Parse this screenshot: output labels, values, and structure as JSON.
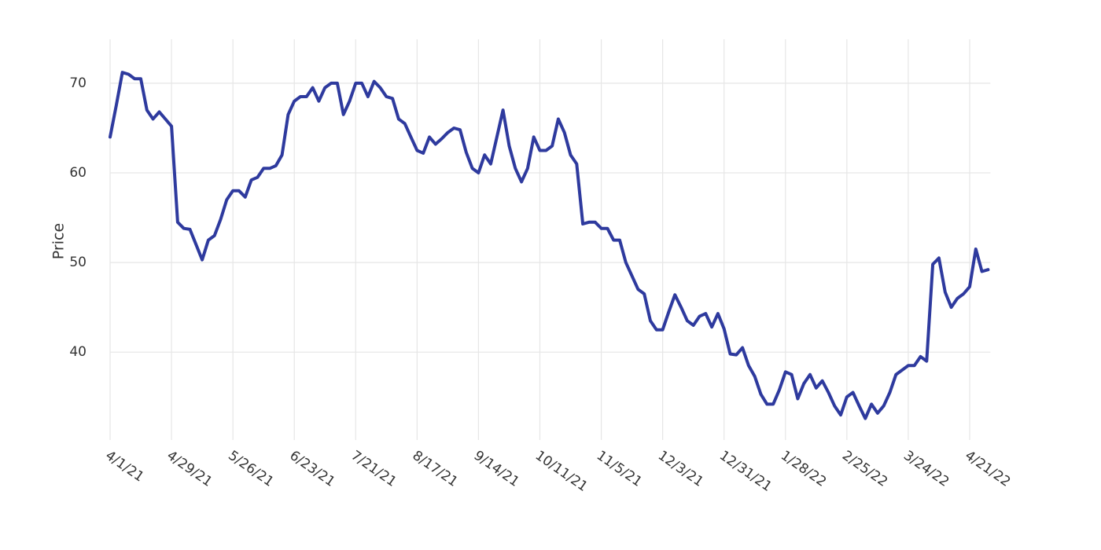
{
  "chart_data": {
    "type": "line",
    "y_label": "Price",
    "categories": [
      "4/1/21",
      null,
      null,
      null,
      null,
      null,
      null,
      null,
      null,
      null,
      "4/29/21",
      null,
      null,
      null,
      null,
      null,
      null,
      null,
      null,
      null,
      "5/26/21",
      null,
      null,
      null,
      null,
      null,
      null,
      null,
      null,
      null,
      "6/23/21",
      null,
      null,
      null,
      null,
      null,
      null,
      null,
      null,
      null,
      "7/21/21",
      null,
      null,
      null,
      null,
      null,
      null,
      null,
      null,
      null,
      "8/17/21",
      null,
      null,
      null,
      null,
      null,
      null,
      null,
      null,
      null,
      "9/14/21",
      null,
      null,
      null,
      null,
      null,
      null,
      null,
      null,
      null,
      "10/11/21",
      null,
      null,
      null,
      null,
      null,
      null,
      null,
      null,
      null,
      "11/5/21",
      null,
      null,
      null,
      null,
      null,
      null,
      null,
      null,
      null,
      "12/3/21",
      null,
      null,
      null,
      null,
      null,
      null,
      null,
      null,
      null,
      "12/31/21",
      null,
      null,
      null,
      null,
      null,
      null,
      null,
      null,
      null,
      "1/28/22",
      null,
      null,
      null,
      null,
      null,
      null,
      null,
      null,
      null,
      "2/25/22",
      null,
      null,
      null,
      null,
      null,
      null,
      null,
      null,
      null,
      "3/24/22",
      null,
      null,
      null,
      null,
      null,
      null,
      null,
      null,
      null,
      "4/21/22",
      null,
      null,
      null
    ],
    "values": [
      64,
      67.5,
      71.2,
      71,
      70.5,
      70.5,
      67,
      66,
      66.8,
      66,
      65.2,
      54.5,
      53.8,
      53.7,
      52,
      50.3,
      52.5,
      53,
      54.8,
      57,
      58,
      58,
      57.3,
      59.2,
      59.5,
      60.5,
      60.5,
      60.8,
      62,
      66.5,
      68,
      68.5,
      68.5,
      69.5,
      68,
      69.5,
      70,
      70,
      66.5,
      68,
      70,
      70,
      68.5,
      70.2,
      69.5,
      68.5,
      68.3,
      66,
      65.5,
      64,
      62.5,
      62.2,
      64,
      63.2,
      63.8,
      64.5,
      65,
      64.8,
      62.3,
      60.5,
      60,
      62,
      61,
      64,
      67,
      63,
      60.5,
      59,
      60.5,
      64,
      62.5,
      62.5,
      63,
      66,
      64.5,
      62,
      61,
      54.3,
      54.5,
      54.5,
      53.8,
      53.8,
      52.5,
      52.5,
      50,
      48.5,
      47,
      46.5,
      43.5,
      42.5,
      42.5,
      44.5,
      46.4,
      45,
      43.5,
      43,
      44,
      44.3,
      42.8,
      44.3,
      42.6,
      39.8,
      39.7,
      40.5,
      38.5,
      37.3,
      35.3,
      34.2,
      34.2,
      35.8,
      37.8,
      37.5,
      34.8,
      36.5,
      37.5,
      36,
      36.8,
      35.5,
      34,
      33,
      35,
      35.5,
      34,
      32.6,
      34.2,
      33.2,
      34,
      35.5,
      37.5,
      38,
      38.5,
      38.5,
      39.5,
      39,
      49.8,
      50.5,
      46.7,
      45,
      46,
      46.5,
      47.3,
      51.5,
      49,
      49.2
    ],
    "color": "#2e3a9e",
    "ylim": [
      30.2,
      74.9
    ],
    "yticks": [
      40,
      50,
      60,
      70
    ],
    "grid": true
  }
}
